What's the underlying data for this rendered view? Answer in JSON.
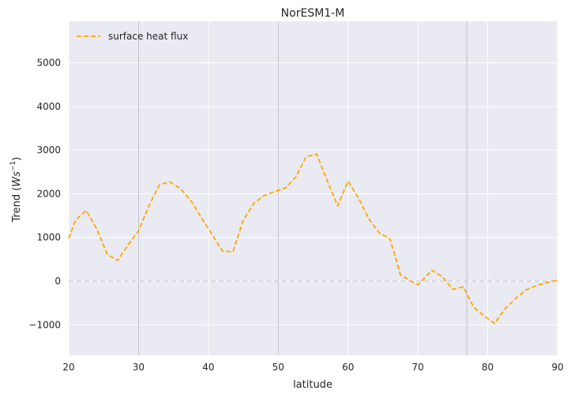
{
  "chart_data": {
    "type": "line",
    "title": "NorESM1-M",
    "xlabel": "latitude",
    "ylabel_prefix": "Trend (",
    "ylabel_math": "Ws",
    "ylabel_exp": "−1",
    "ylabel_suffix": ")",
    "xlim": [
      20,
      90
    ],
    "ylim": [
      -1700,
      5950
    ],
    "xticks": [
      20,
      30,
      40,
      50,
      60,
      70,
      80,
      90
    ],
    "yticks": [
      -1000,
      0,
      1000,
      2000,
      3000,
      4000,
      5000
    ],
    "ytick_labels": [
      "−1000",
      "0",
      "1000",
      "2000",
      "3000",
      "4000",
      "5000"
    ],
    "grid": true,
    "legend_position": "top-left",
    "vertical_reference_lines": [
      30,
      50,
      77
    ],
    "horizontal_reference_line": 0,
    "series": [
      {
        "name": "surface heat flux",
        "color": "#FFA500",
        "style": "dashed",
        "x": [
          20,
          21,
          22.5,
          24,
          25.5,
          27,
          28.5,
          30,
          31.5,
          33,
          34.5,
          36,
          37.5,
          39,
          40.5,
          42,
          43.5,
          45,
          46.5,
          48,
          49.5,
          51,
          52.5,
          54,
          55.5,
          57,
          58.5,
          60,
          61.5,
          63,
          64.5,
          66,
          67.5,
          69,
          70,
          71,
          72,
          73.5,
          75,
          76.5,
          78,
          79.5,
          81,
          82.5,
          84,
          85.5,
          87,
          88.5,
          90
        ],
        "values": [
          980,
          1400,
          1620,
          1200,
          620,
          470,
          830,
          1150,
          1730,
          2210,
          2270,
          2120,
          1840,
          1450,
          1080,
          690,
          670,
          1400,
          1780,
          1960,
          2050,
          2130,
          2380,
          2850,
          2910,
          2310,
          1720,
          2290,
          1900,
          1420,
          1100,
          970,
          150,
          0,
          -80,
          80,
          250,
          100,
          -190,
          -130,
          -600,
          -800,
          -970,
          -630,
          -400,
          -200,
          -100,
          -30,
          20
        ]
      }
    ]
  }
}
